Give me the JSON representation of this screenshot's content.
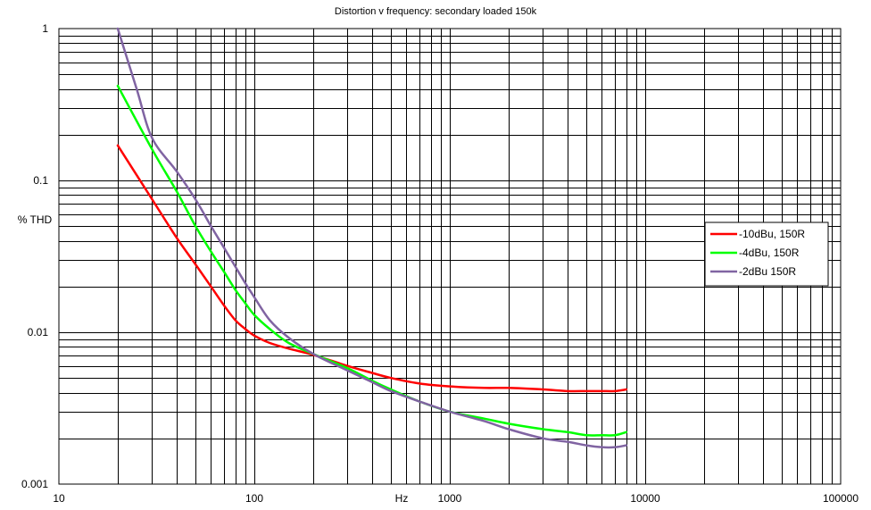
{
  "chart_data": {
    "type": "line",
    "title": "Distortion v frequency: secondary loaded 150k",
    "xlabel": "Hz",
    "ylabel": "% THD",
    "xscale": "log",
    "yscale": "log",
    "xlim": [
      10,
      100000
    ],
    "ylim": [
      0.001,
      1
    ],
    "x_tick_labels": [
      "10",
      "100",
      "1000",
      "10000",
      "100000"
    ],
    "y_tick_labels": [
      "0.001",
      "0.01",
      "0.1",
      "1"
    ],
    "grid": true,
    "legend_position": "right",
    "series": [
      {
        "name": "-10dBu, 150R",
        "color": "#ff0000",
        "x": [
          20,
          30,
          40,
          50,
          60,
          70,
          80,
          90,
          100,
          120,
          150,
          200,
          300,
          400,
          500,
          700,
          1000,
          1500,
          2000,
          3000,
          4000,
          5000,
          6000,
          7000,
          8000
        ],
        "y": [
          0.17,
          0.075,
          0.042,
          0.028,
          0.02,
          0.015,
          0.012,
          0.0105,
          0.0095,
          0.0085,
          0.0078,
          0.0071,
          0.006,
          0.0054,
          0.005,
          0.0046,
          0.0044,
          0.0043,
          0.0043,
          0.0042,
          0.0041,
          0.0041,
          0.0041,
          0.0041,
          0.0042
        ]
      },
      {
        "name": "-4dBu, 150R",
        "color": "#00ff00",
        "x": [
          20,
          30,
          40,
          50,
          60,
          70,
          80,
          90,
          100,
          120,
          150,
          200,
          300,
          400,
          500,
          700,
          1000,
          1500,
          2000,
          3000,
          4000,
          5000,
          6000,
          7000,
          8000
        ],
        "y": [
          0.42,
          0.16,
          0.085,
          0.05,
          0.034,
          0.025,
          0.019,
          0.0155,
          0.013,
          0.0105,
          0.0085,
          0.0072,
          0.0058,
          0.0048,
          0.0042,
          0.0035,
          0.003,
          0.0027,
          0.0025,
          0.0023,
          0.0022,
          0.0021,
          0.0021,
          0.0021,
          0.0022
        ]
      },
      {
        "name": "-2dBu 150R",
        "color": "#8064a2",
        "x": [
          20,
          25,
          30,
          40,
          50,
          60,
          70,
          80,
          90,
          100,
          120,
          150,
          200,
          300,
          400,
          500,
          700,
          1000,
          1500,
          2000,
          3000,
          4000,
          5000,
          6000,
          7000,
          8000
        ],
        "y": [
          1.0,
          0.4,
          0.19,
          0.115,
          0.075,
          0.05,
          0.036,
          0.027,
          0.021,
          0.017,
          0.012,
          0.0092,
          0.0072,
          0.0056,
          0.0047,
          0.0041,
          0.0035,
          0.003,
          0.0026,
          0.0023,
          0.002,
          0.0019,
          0.0018,
          0.00175,
          0.00175,
          0.0018
        ]
      }
    ]
  }
}
